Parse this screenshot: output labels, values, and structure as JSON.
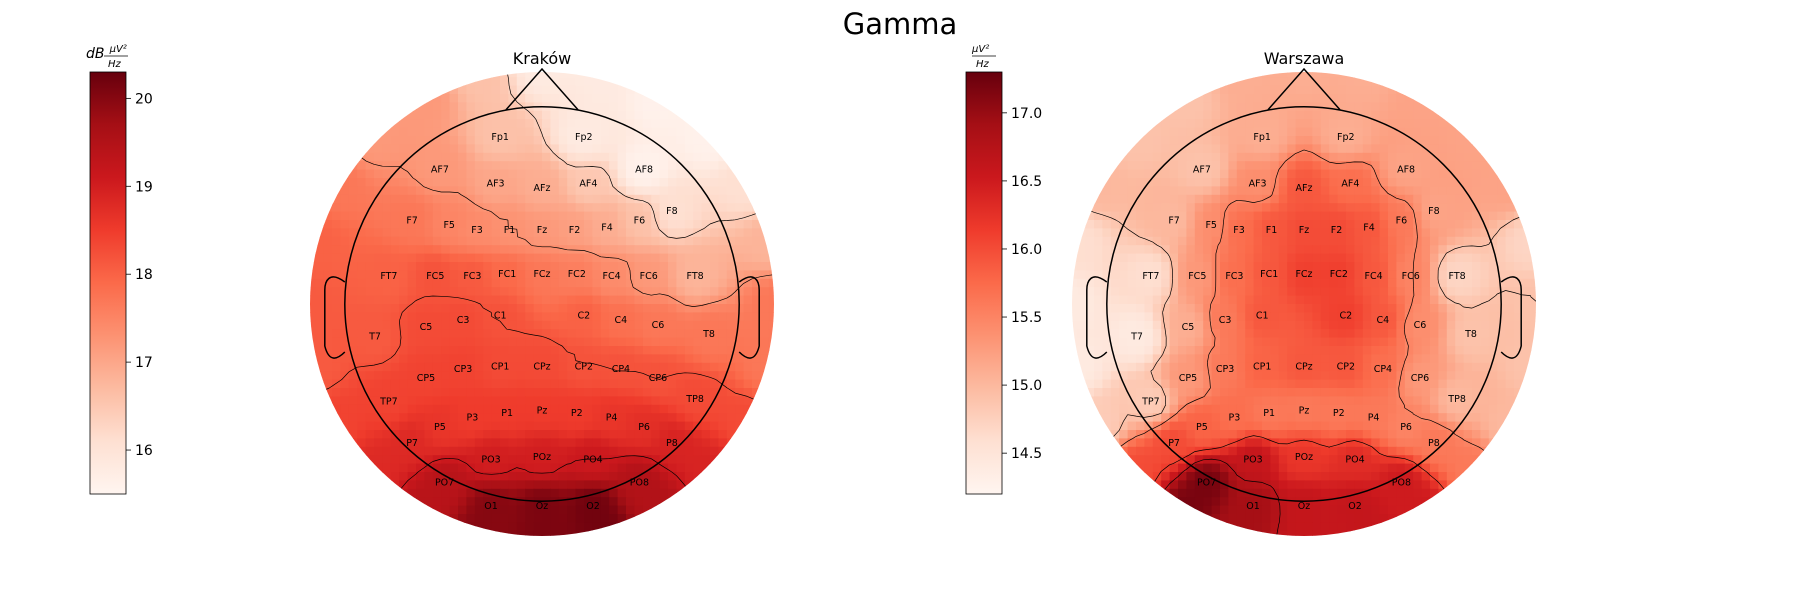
{
  "chart_data": {
    "type": "heatmap",
    "title": "Gamma",
    "colormap": "Reds",
    "colors": {
      "low": "#fff5f0",
      "mid": "#ef3b2c",
      "high": "#67000d"
    },
    "panels": [
      {
        "title": "Kraków",
        "colorbar": {
          "unit_prefix": "dB",
          "unit_numerator": "μV²",
          "unit_denominator": "Hz",
          "range": [
            15.5,
            20.3
          ],
          "ticks": [
            16,
            17,
            18,
            19,
            20
          ],
          "tick_labels": [
            "16",
            "17",
            "18",
            "19",
            "20"
          ]
        },
        "contour_levels": [
          16.4,
          17.3,
          18.2,
          19.1
        ],
        "electrodes": [
          {
            "name": "Fp1",
            "x": -0.18,
            "y": 0.72,
            "value": 16.6
          },
          {
            "name": "Fp2",
            "x": 0.18,
            "y": 0.72,
            "value": 15.8
          },
          {
            "name": "AF7",
            "x": -0.44,
            "y": 0.58,
            "value": 17.2
          },
          {
            "name": "AF3",
            "x": -0.2,
            "y": 0.52,
            "value": 17.0
          },
          {
            "name": "AFz",
            "x": 0.0,
            "y": 0.5,
            "value": 16.9
          },
          {
            "name": "AF4",
            "x": 0.2,
            "y": 0.52,
            "value": 16.5
          },
          {
            "name": "AF8",
            "x": 0.44,
            "y": 0.58,
            "value": 15.6
          },
          {
            "name": "F7",
            "x": -0.56,
            "y": 0.36,
            "value": 17.7
          },
          {
            "name": "F5",
            "x": -0.4,
            "y": 0.34,
            "value": 17.5
          },
          {
            "name": "F3",
            "x": -0.28,
            "y": 0.32,
            "value": 17.4
          },
          {
            "name": "F1",
            "x": -0.14,
            "y": 0.32,
            "value": 17.3
          },
          {
            "name": "Fz",
            "x": 0.0,
            "y": 0.32,
            "value": 17.2
          },
          {
            "name": "F2",
            "x": 0.14,
            "y": 0.32,
            "value": 17.1
          },
          {
            "name": "F4",
            "x": 0.28,
            "y": 0.33,
            "value": 16.9
          },
          {
            "name": "F6",
            "x": 0.42,
            "y": 0.36,
            "value": 16.6
          },
          {
            "name": "F8",
            "x": 0.56,
            "y": 0.4,
            "value": 16.1
          },
          {
            "name": "FT7",
            "x": -0.66,
            "y": 0.12,
            "value": 18.0
          },
          {
            "name": "FC5",
            "x": -0.46,
            "y": 0.12,
            "value": 18.2
          },
          {
            "name": "FC3",
            "x": -0.3,
            "y": 0.12,
            "value": 18.1
          },
          {
            "name": "FC1",
            "x": -0.15,
            "y": 0.13,
            "value": 17.9
          },
          {
            "name": "FCz",
            "x": 0.0,
            "y": 0.13,
            "value": 17.7
          },
          {
            "name": "FC2",
            "x": 0.15,
            "y": 0.13,
            "value": 17.6
          },
          {
            "name": "FC4",
            "x": 0.3,
            "y": 0.12,
            "value": 17.4
          },
          {
            "name": "FC6",
            "x": 0.46,
            "y": 0.12,
            "value": 17.2
          },
          {
            "name": "FT8",
            "x": 0.66,
            "y": 0.12,
            "value": 16.8
          },
          {
            "name": "T7",
            "x": -0.72,
            "y": -0.14,
            "value": 18.1
          },
          {
            "name": "C5",
            "x": -0.5,
            "y": -0.1,
            "value": 18.3
          },
          {
            "name": "C3",
            "x": -0.34,
            "y": -0.07,
            "value": 18.3
          },
          {
            "name": "C1",
            "x": -0.18,
            "y": -0.05,
            "value": 18.2
          },
          {
            "name": "C2",
            "x": 0.18,
            "y": -0.05,
            "value": 18.0
          },
          {
            "name": "C4",
            "x": 0.34,
            "y": -0.07,
            "value": 17.8
          },
          {
            "name": "C6",
            "x": 0.5,
            "y": -0.09,
            "value": 17.7
          },
          {
            "name": "T8",
            "x": 0.72,
            "y": -0.13,
            "value": 17.7
          },
          {
            "name": "TP7",
            "x": -0.66,
            "y": -0.42,
            "value": 18.4
          },
          {
            "name": "CP5",
            "x": -0.5,
            "y": -0.32,
            "value": 18.4
          },
          {
            "name": "CP3",
            "x": -0.34,
            "y": -0.28,
            "value": 18.4
          },
          {
            "name": "CP1",
            "x": -0.18,
            "y": -0.27,
            "value": 18.3
          },
          {
            "name": "CPz",
            "x": 0.0,
            "y": -0.27,
            "value": 18.3
          },
          {
            "name": "CP2",
            "x": 0.18,
            "y": -0.27,
            "value": 18.2
          },
          {
            "name": "CP4",
            "x": 0.34,
            "y": -0.28,
            "value": 18.2
          },
          {
            "name": "CP6",
            "x": 0.5,
            "y": -0.32,
            "value": 18.2
          },
          {
            "name": "TP8",
            "x": 0.66,
            "y": -0.41,
            "value": 18.3
          },
          {
            "name": "P7",
            "x": -0.56,
            "y": -0.6,
            "value": 18.8
          },
          {
            "name": "P5",
            "x": -0.44,
            "y": -0.53,
            "value": 18.6
          },
          {
            "name": "P3",
            "x": -0.3,
            "y": -0.49,
            "value": 18.5
          },
          {
            "name": "P1",
            "x": -0.15,
            "y": -0.47,
            "value": 18.5
          },
          {
            "name": "Pz",
            "x": 0.0,
            "y": -0.46,
            "value": 18.5
          },
          {
            "name": "P2",
            "x": 0.15,
            "y": -0.47,
            "value": 18.5
          },
          {
            "name": "P4",
            "x": 0.3,
            "y": -0.49,
            "value": 18.6
          },
          {
            "name": "P6",
            "x": 0.44,
            "y": -0.53,
            "value": 18.7
          },
          {
            "name": "P8",
            "x": 0.56,
            "y": -0.6,
            "value": 18.9
          },
          {
            "name": "PO7",
            "x": -0.42,
            "y": -0.77,
            "value": 19.4
          },
          {
            "name": "PO3",
            "x": -0.22,
            "y": -0.67,
            "value": 19.0
          },
          {
            "name": "POz",
            "x": 0.0,
            "y": -0.66,
            "value": 19.0
          },
          {
            "name": "PO4",
            "x": 0.22,
            "y": -0.67,
            "value": 19.1
          },
          {
            "name": "PO8",
            "x": 0.42,
            "y": -0.77,
            "value": 19.5
          },
          {
            "name": "O1",
            "x": -0.22,
            "y": -0.87,
            "value": 20.0
          },
          {
            "name": "Oz",
            "x": 0.0,
            "y": -0.87,
            "value": 20.1
          },
          {
            "name": "O2",
            "x": 0.22,
            "y": -0.87,
            "value": 20.2
          }
        ]
      },
      {
        "title": "Warszawa",
        "colorbar": {
          "unit_prefix": "",
          "unit_numerator": "μV²",
          "unit_denominator": "Hz",
          "range": [
            14.2,
            17.3
          ],
          "ticks": [
            14.5,
            15.0,
            15.5,
            16.0,
            16.5,
            17.0
          ],
          "tick_labels": [
            "14.5",
            "15.0",
            "15.5",
            "16.0",
            "16.5",
            "17.0"
          ]
        },
        "contour_levels": [
          14.9,
          15.5,
          16.1,
          16.7
        ],
        "electrodes": [
          {
            "name": "Fp1",
            "x": -0.18,
            "y": 0.72,
            "value": 15.1
          },
          {
            "name": "Fp2",
            "x": 0.18,
            "y": 0.72,
            "value": 15.1
          },
          {
            "name": "AF7",
            "x": -0.44,
            "y": 0.58,
            "value": 14.9
          },
          {
            "name": "AF3",
            "x": -0.2,
            "y": 0.52,
            "value": 15.4
          },
          {
            "name": "AFz",
            "x": 0.0,
            "y": 0.5,
            "value": 15.9
          },
          {
            "name": "AF4",
            "x": 0.2,
            "y": 0.52,
            "value": 15.7
          },
          {
            "name": "AF8",
            "x": 0.44,
            "y": 0.58,
            "value": 15.2
          },
          {
            "name": "F7",
            "x": -0.56,
            "y": 0.36,
            "value": 15.0
          },
          {
            "name": "F5",
            "x": -0.4,
            "y": 0.34,
            "value": 15.4
          },
          {
            "name": "F3",
            "x": -0.28,
            "y": 0.32,
            "value": 15.7
          },
          {
            "name": "F1",
            "x": -0.14,
            "y": 0.32,
            "value": 15.9
          },
          {
            "name": "Fz",
            "x": 0.0,
            "y": 0.32,
            "value": 16.0
          },
          {
            "name": "F2",
            "x": 0.14,
            "y": 0.32,
            "value": 16.0
          },
          {
            "name": "F4",
            "x": 0.28,
            "y": 0.33,
            "value": 15.9
          },
          {
            "name": "F6",
            "x": 0.42,
            "y": 0.36,
            "value": 15.6
          },
          {
            "name": "F8",
            "x": 0.56,
            "y": 0.4,
            "value": 15.2
          },
          {
            "name": "FT7",
            "x": -0.66,
            "y": 0.12,
            "value": 14.6
          },
          {
            "name": "FC5",
            "x": -0.46,
            "y": 0.12,
            "value": 15.3
          },
          {
            "name": "FC3",
            "x": -0.3,
            "y": 0.12,
            "value": 15.7
          },
          {
            "name": "FC1",
            "x": -0.15,
            "y": 0.13,
            "value": 15.9
          },
          {
            "name": "FCz",
            "x": 0.0,
            "y": 0.13,
            "value": 16.1
          },
          {
            "name": "FC2",
            "x": 0.15,
            "y": 0.13,
            "value": 16.1
          },
          {
            "name": "FC4",
            "x": 0.3,
            "y": 0.12,
            "value": 15.9
          },
          {
            "name": "FC6",
            "x": 0.46,
            "y": 0.12,
            "value": 15.5
          },
          {
            "name": "FT8",
            "x": 0.66,
            "y": 0.12,
            "value": 14.7
          },
          {
            "name": "T7",
            "x": -0.72,
            "y": -0.14,
            "value": 14.4
          },
          {
            "name": "C5",
            "x": -0.5,
            "y": -0.1,
            "value": 15.1
          },
          {
            "name": "C3",
            "x": -0.34,
            "y": -0.07,
            "value": 15.6
          },
          {
            "name": "C1",
            "x": -0.18,
            "y": -0.05,
            "value": 15.9
          },
          {
            "name": "C2",
            "x": 0.18,
            "y": -0.05,
            "value": 16.1
          },
          {
            "name": "C4",
            "x": 0.34,
            "y": -0.07,
            "value": 15.9
          },
          {
            "name": "C6",
            "x": 0.5,
            "y": -0.09,
            "value": 15.4
          },
          {
            "name": "T8",
            "x": 0.72,
            "y": -0.13,
            "value": 14.9
          },
          {
            "name": "TP7",
            "x": -0.66,
            "y": -0.42,
            "value": 14.8
          },
          {
            "name": "CP5",
            "x": -0.5,
            "y": -0.32,
            "value": 15.3
          },
          {
            "name": "CP3",
            "x": -0.34,
            "y": -0.28,
            "value": 15.6
          },
          {
            "name": "CP1",
            "x": -0.18,
            "y": -0.27,
            "value": 15.8
          },
          {
            "name": "CPz",
            "x": 0.0,
            "y": -0.27,
            "value": 15.9
          },
          {
            "name": "CP2",
            "x": 0.18,
            "y": -0.27,
            "value": 15.9
          },
          {
            "name": "CP4",
            "x": 0.34,
            "y": -0.28,
            "value": 15.7
          },
          {
            "name": "CP6",
            "x": 0.5,
            "y": -0.32,
            "value": 15.3
          },
          {
            "name": "TP8",
            "x": 0.66,
            "y": -0.41,
            "value": 15.0
          },
          {
            "name": "P7",
            "x": -0.56,
            "y": -0.6,
            "value": 16.0
          },
          {
            "name": "P5",
            "x": -0.44,
            "y": -0.53,
            "value": 15.8
          },
          {
            "name": "P3",
            "x": -0.3,
            "y": -0.49,
            "value": 15.7
          },
          {
            "name": "P1",
            "x": -0.15,
            "y": -0.47,
            "value": 15.6
          },
          {
            "name": "Pz",
            "x": 0.0,
            "y": -0.46,
            "value": 15.6
          },
          {
            "name": "P2",
            "x": 0.15,
            "y": -0.47,
            "value": 15.6
          },
          {
            "name": "P4",
            "x": 0.3,
            "y": -0.49,
            "value": 15.6
          },
          {
            "name": "P6",
            "x": 0.44,
            "y": -0.53,
            "value": 15.5
          },
          {
            "name": "P8",
            "x": 0.56,
            "y": -0.6,
            "value": 15.6
          },
          {
            "name": "PO7",
            "x": -0.42,
            "y": -0.77,
            "value": 17.2
          },
          {
            "name": "PO3",
            "x": -0.22,
            "y": -0.67,
            "value": 16.6
          },
          {
            "name": "POz",
            "x": 0.0,
            "y": -0.66,
            "value": 16.2
          },
          {
            "name": "PO4",
            "x": 0.22,
            "y": -0.67,
            "value": 16.3
          },
          {
            "name": "PO8",
            "x": 0.42,
            "y": -0.77,
            "value": 16.5
          },
          {
            "name": "O1",
            "x": -0.22,
            "y": -0.87,
            "value": 16.9
          },
          {
            "name": "Oz",
            "x": 0.0,
            "y": -0.87,
            "value": 16.6
          },
          {
            "name": "O2",
            "x": 0.22,
            "y": -0.87,
            "value": 16.6
          }
        ]
      }
    ]
  }
}
